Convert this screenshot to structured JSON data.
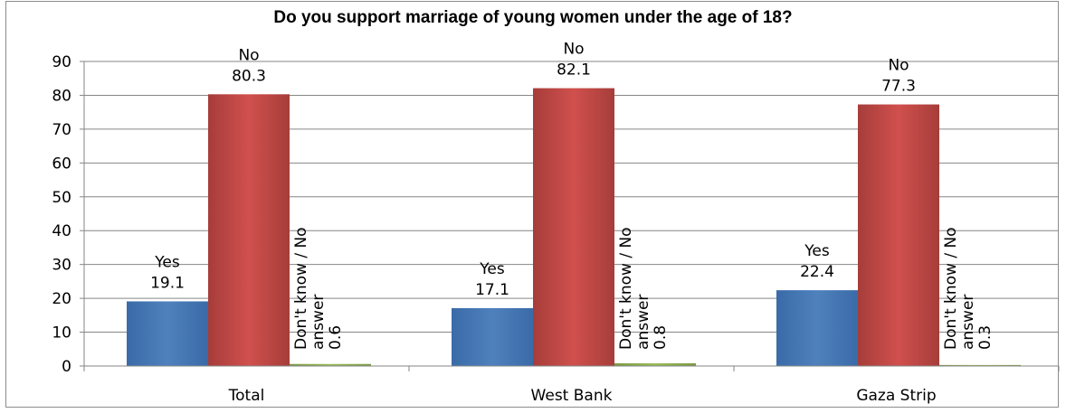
{
  "chart_data": {
    "type": "bar",
    "title": "Do you support marriage of young women under the age of 18?",
    "categories": [
      "Total",
      "West Bank",
      "Gaza Strip"
    ],
    "series": [
      {
        "name": "Yes",
        "values": [
          19.1,
          17.1,
          22.4
        ],
        "color": "#4f81bd"
      },
      {
        "name": "No",
        "values": [
          80.3,
          82.1,
          77.3
        ],
        "color": "#c0504d"
      },
      {
        "name": "Don't know / No answer",
        "values": [
          0.6,
          0.8,
          0.3
        ],
        "color": "#9bbb59"
      }
    ],
    "ylim": [
      0,
      90
    ],
    "yticks": [
      0,
      10,
      20,
      30,
      40,
      50,
      60,
      70,
      80,
      90
    ],
    "grid": true,
    "legend": "none",
    "data_labels": [
      [
        {
          "name": "Yes",
          "value": "19.1"
        },
        {
          "name": "No",
          "value": "80.3"
        },
        {
          "name_lines": [
            "Don't know / No",
            "answer"
          ],
          "value": "0.6"
        }
      ],
      [
        {
          "name": "Yes",
          "value": "17.1"
        },
        {
          "name": "No",
          "value": "82.1"
        },
        {
          "name_lines": [
            "Don't know / No",
            "answer"
          ],
          "value": "0.8"
        }
      ],
      [
        {
          "name": "Yes",
          "value": "22.4"
        },
        {
          "name": "No",
          "value": "77.3"
        },
        {
          "name_lines": [
            "Don't know / No",
            "answer"
          ],
          "value": "0.3"
        }
      ]
    ]
  }
}
